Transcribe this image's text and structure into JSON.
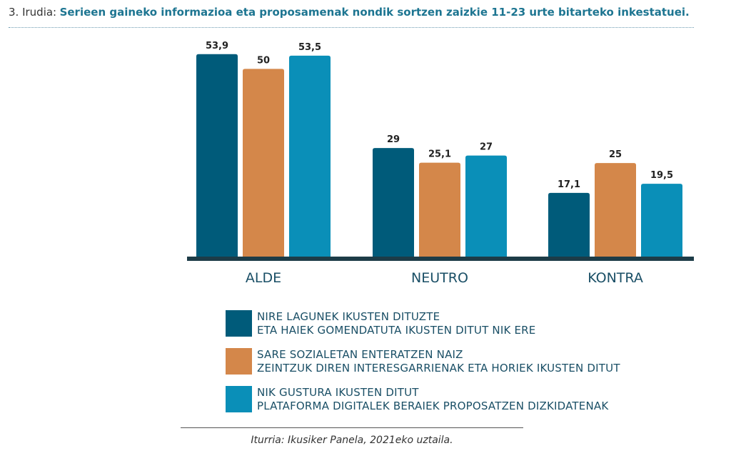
{
  "header": {
    "prefix": "3. Irudia:",
    "title": "Serieen gaineko informazioa eta proposamenak nondik sortzen zaizkie 11-23 urte bitarteko inkestatuei."
  },
  "chart_data": {
    "type": "bar",
    "categories": [
      "ALDE",
      "NEUTRO",
      "KONTRA"
    ],
    "series": [
      {
        "name": "NIRE LAGUNEK IKUSTEN DITUZTE ETA HAIEK GOMENDATUTA IKUSTEN DITUT NIK ERE",
        "color": "#005b7a",
        "values": [
          53.9,
          29,
          17.1
        ],
        "labels": [
          "53,9",
          "29",
          "17,1"
        ]
      },
      {
        "name": "SARE SOZIALETAN ENTERATZEN NAIZ ZEINTZUK DIREN INTERESGARRIENAK ETA HORIEK IKUSTEN DITUT",
        "color": "#d4874a",
        "values": [
          50,
          25.1,
          25
        ],
        "labels": [
          "50",
          "25,1",
          "25"
        ]
      },
      {
        "name": "NIK GUSTURA IKUSTEN DITUT PLATAFORMA DIGITALEK BERAIEK PROPOSATZEN DIZKIDATENAK",
        "color": "#0a8fb8",
        "values": [
          53.5,
          27,
          19.5
        ],
        "labels": [
          "53,5",
          "27",
          "19,5"
        ]
      }
    ],
    "ylim": [
      0,
      55
    ],
    "grid": false,
    "legend_position": "bottom"
  },
  "legend": {
    "items": [
      {
        "line1": "NIRE LAGUNEK IKUSTEN DITUZTE",
        "line2": "ETA HAIEK GOMENDATUTA IKUSTEN DITUT NIK ERE",
        "color": "#005b7a"
      },
      {
        "line1": "SARE SOZIALETAN ENTERATZEN NAIZ",
        "line2": "ZEINTZUK DIREN INTERESGARRIENAK ETA HORIEK IKUSTEN DITUT",
        "color": "#d4874a"
      },
      {
        "line1": "NIK GUSTURA IKUSTEN DITUT",
        "line2": "PLATAFORMA DIGITALEK BERAIEK PROPOSATZEN DIZKIDATENAK",
        "color": "#0a8fb8"
      }
    ]
  },
  "source": "Iturria: Ikusiker Panela, 2021eko uztaila."
}
